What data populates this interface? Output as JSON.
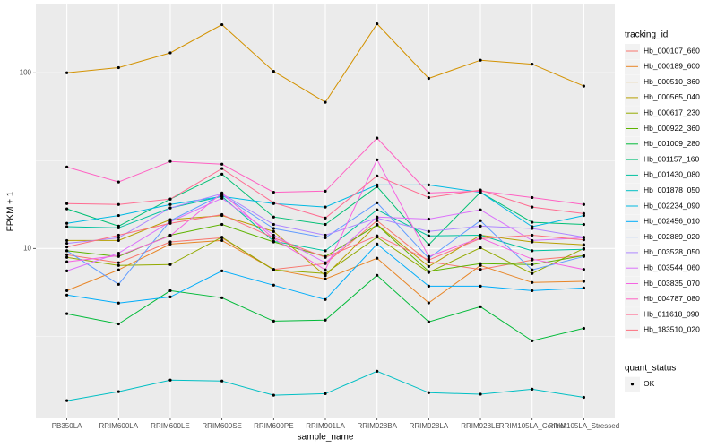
{
  "chart_data": {
    "type": "line",
    "x_label": "sample_name",
    "y_label": "FPKM + 1",
    "categories": [
      "PB350LA",
      "RRIM600LA",
      "RRIM600LE",
      "RRIM600SE",
      "RRIM600PE",
      "RRIM901LA",
      "RRIM928BA",
      "RRIM928LA",
      "RRIM928LE",
      "RRIM105LA_Control",
      "RRIM105LA_Stressed"
    ],
    "ylim": [
      1.09,
      245
    ],
    "yticks": [
      10,
      100
    ],
    "log_y": true,
    "grid": true,
    "legend_position": "right",
    "legend_title": "tracking_id",
    "points": {
      "title": "quant_status",
      "labels": [
        "OK"
      ],
      "color": "#000000"
    },
    "series": [
      {
        "name": "Hb_000107_660",
        "color": "#F8766D",
        "values": [
          9.2,
          8.3,
          10.9,
          11.5,
          7.6,
          8.2,
          14.4,
          8.4,
          7.6,
          8.6,
          9.1
        ]
      },
      {
        "name": "Hb_000189_600",
        "color": "#E88526",
        "values": [
          5.75,
          7.55,
          10.6,
          11.1,
          7.6,
          6.7,
          8.8,
          4.9,
          8.0,
          6.4,
          6.5
        ]
      },
      {
        "name": "Hb_000510_360",
        "color": "#D39200",
        "values": [
          100,
          107,
          130,
          188,
          102,
          68,
          190,
          93,
          118,
          112,
          84
        ]
      },
      {
        "name": "Hb_000565_040",
        "color": "#B79F00",
        "values": [
          11.1,
          11.1,
          14.6,
          15.4,
          12.5,
          7.0,
          13.7,
          7.9,
          11.9,
          10.9,
          10.5
        ]
      },
      {
        "name": "Hb_000617_230",
        "color": "#93AA00",
        "values": [
          8.9,
          8.0,
          8.1,
          11.6,
          7.55,
          7.2,
          11.6,
          7.3,
          10.1,
          7.2,
          10.0
        ]
      },
      {
        "name": "Hb_000922_360",
        "color": "#5EB300",
        "values": [
          9.7,
          9.0,
          11.9,
          13.7,
          10.9,
          9.0,
          13.6,
          7.4,
          8.2,
          8.1,
          9.1
        ]
      },
      {
        "name": "Hb_001009_280",
        "color": "#00BA38",
        "values": [
          4.25,
          3.72,
          5.75,
          5.24,
          3.86,
          3.91,
          7.03,
          3.82,
          4.66,
          2.98,
          3.51
        ]
      },
      {
        "name": "Hb_001157_160",
        "color": "#00BF74",
        "values": [
          16.8,
          13.4,
          19.1,
          26.5,
          15.1,
          13.7,
          22.5,
          10.5,
          20.9,
          14.1,
          13.7
        ]
      },
      {
        "name": "Hb_001430_080",
        "color": "#00C19F",
        "values": [
          13.3,
          13.1,
          17.0,
          19.8,
          11.0,
          9.7,
          16.6,
          11.8,
          11.9,
          9.7,
          9.9
        ]
      },
      {
        "name": "Hb_001878_050",
        "color": "#00BFC4",
        "values": [
          1.36,
          1.53,
          1.78,
          1.76,
          1.46,
          1.49,
          2.0,
          1.51,
          1.48,
          1.58,
          1.42
        ]
      },
      {
        "name": "Hb_002234_090",
        "color": "#00B9E3",
        "values": [
          13.9,
          15.4,
          17.8,
          19.8,
          18.0,
          17.2,
          23.0,
          23.0,
          20.9,
          13.3,
          15.4
        ]
      },
      {
        "name": "Hb_002456_010",
        "color": "#00ADFA",
        "values": [
          5.43,
          4.89,
          5.3,
          7.45,
          6.18,
          5.12,
          10.6,
          6.1,
          6.1,
          5.75,
          5.96
        ]
      },
      {
        "name": "Hb_002889_020",
        "color": "#619CFF",
        "values": [
          9.7,
          6.25,
          14.4,
          20.2,
          13.0,
          11.5,
          18.2,
          8.8,
          14.4,
          7.55,
          9.0
        ]
      },
      {
        "name": "Hb_003528_050",
        "color": "#AE87FF",
        "values": [
          10.7,
          11.5,
          17.0,
          20.5,
          13.7,
          11.9,
          14.9,
          12.5,
          13.4,
          13.0,
          11.6
        ]
      },
      {
        "name": "Hb_003544_060",
        "color": "#DB72FB",
        "values": [
          7.45,
          9.4,
          14.2,
          19.3,
          11.9,
          8.3,
          15.1,
          14.7,
          16.6,
          11.1,
          11.5
        ]
      },
      {
        "name": "Hb_003835_070",
        "color": "#F564E3",
        "values": [
          8.4,
          9.1,
          11.8,
          20.7,
          11.4,
          7.55,
          32.0,
          9.0,
          11.5,
          8.7,
          7.6
        ]
      },
      {
        "name": "Hb_004787_080",
        "color": "#FF61C3",
        "values": [
          29.1,
          23.9,
          31.3,
          30.2,
          20.9,
          21.2,
          42.5,
          20.7,
          21.2,
          19.5,
          17.8
        ]
      },
      {
        "name": "Hb_011618_090",
        "color": "#FF6C91",
        "values": [
          18.0,
          17.8,
          19.1,
          28.5,
          18.2,
          14.9,
          25.9,
          19.5,
          21.5,
          17.2,
          15.8
        ]
      },
      {
        "name": "Hb_183510_020",
        "color": "#FC717F",
        "values": [
          10.2,
          11.9,
          13.9,
          15.6,
          11.5,
          8.9,
          11.8,
          8.6,
          11.4,
          11.9,
          11.2
        ]
      }
    ]
  }
}
